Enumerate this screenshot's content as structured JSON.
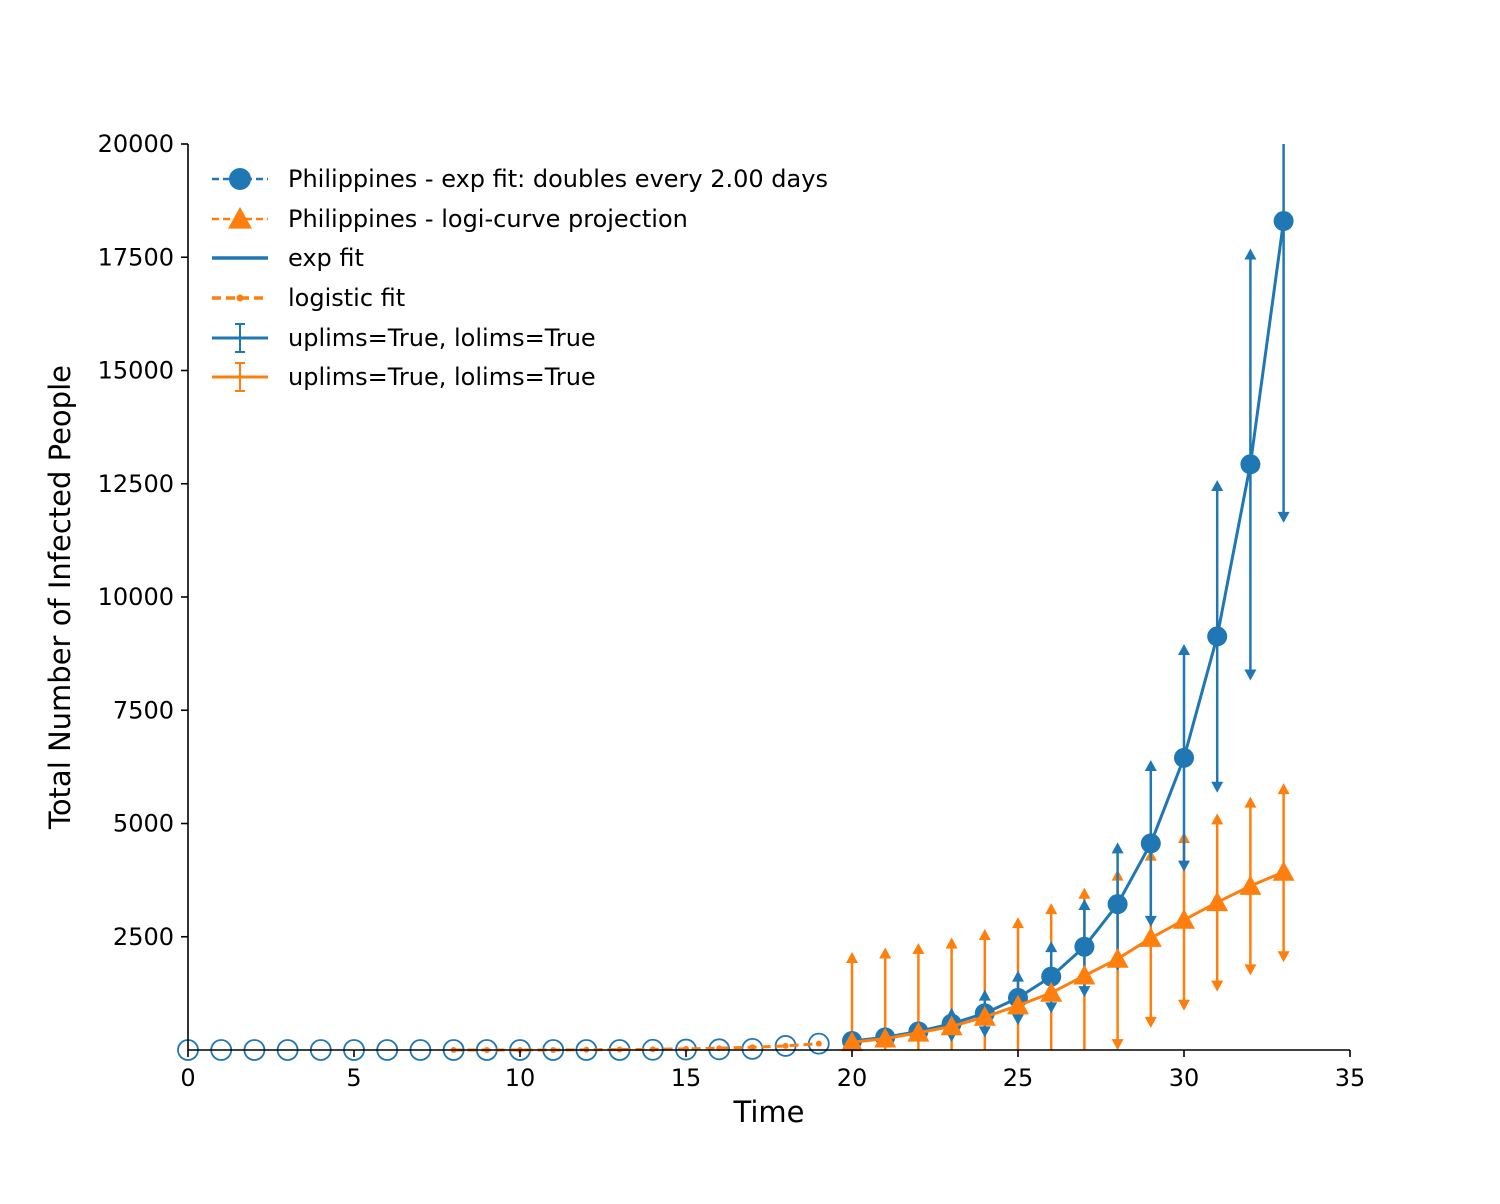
{
  "colors": {
    "blue": "#1f77b4",
    "orange": "#ff7f0e",
    "axis": "#000000"
  },
  "chart_data": {
    "type": "line",
    "title": "",
    "xlabel": "Time",
    "ylabel": "Total Number of Infected People",
    "xlim": [
      0,
      35
    ],
    "ylim": [
      0,
      20000
    ],
    "xticks": [
      "0",
      "5",
      "10",
      "15",
      "20",
      "25",
      "30",
      "35"
    ],
    "yticks": [
      "2500",
      "5000",
      "7500",
      "10000",
      "12500",
      "15000",
      "17500",
      "20000"
    ],
    "xtick_values": [
      0,
      5,
      10,
      15,
      20,
      25,
      30,
      35
    ],
    "ytick_values": [
      2500,
      5000,
      7500,
      10000,
      12500,
      15000,
      17500,
      20000
    ],
    "grid": false,
    "legend_position": "top-left",
    "legend": [
      "Philippines - exp fit: doubles every 2.00 days",
      "Philippines - logi-curve projection",
      "exp fit",
      "logistic fit",
      "uplims=True, lolims=True",
      "uplims=True, lolims=True"
    ],
    "series": [
      {
        "kind": "observed-hollow-circles",
        "x": [
          0,
          1,
          2,
          3,
          4,
          5,
          6,
          7,
          8,
          9,
          10,
          11,
          12,
          13,
          14,
          15,
          16,
          17,
          18,
          19
        ],
        "values": [
          0,
          0,
          0,
          0,
          0,
          0,
          0,
          0,
          0,
          0,
          0,
          0,
          0,
          0,
          5,
          10,
          15,
          25,
          90,
          140
        ]
      },
      {
        "kind": "logistic-fit-dotted",
        "x": [
          8,
          9,
          10,
          11,
          12,
          13,
          14,
          15,
          16,
          17,
          18,
          19
        ],
        "values": [
          0,
          0,
          0,
          0,
          5,
          10,
          15,
          25,
          40,
          60,
          90,
          140
        ]
      },
      {
        "kind": "exp-projection",
        "x": [
          20,
          21,
          22,
          23,
          24,
          25,
          26,
          27,
          28,
          29,
          30,
          31,
          32,
          33
        ],
        "values": [
          200,
          280,
          410,
          580,
          810,
          1150,
          1620,
          2280,
          3220,
          4560,
          6450,
          9130,
          12930,
          18300
        ],
        "err_x": [
          21,
          22,
          23,
          24,
          25,
          26,
          27,
          28,
          29,
          30,
          31,
          32,
          33
        ],
        "err_upper": [
          null,
          null,
          800,
          1200,
          1620,
          2270,
          3200,
          4450,
          6270,
          8830,
          12450,
          17560,
          20000
        ],
        "err_lower": [
          null,
          null,
          310,
          410,
          680,
          940,
          1300,
          1880,
          2850,
          4070,
          5810,
          8290,
          11770
        ]
      },
      {
        "kind": "logistic-projection",
        "x": [
          20,
          21,
          22,
          23,
          24,
          25,
          26,
          27,
          28,
          29,
          30,
          31,
          32,
          33
        ],
        "values": [
          170,
          250,
          380,
          520,
          730,
          980,
          1260,
          1640,
          2010,
          2470,
          2870,
          3260,
          3620,
          3930
        ],
        "err_upper": [
          2030,
          2130,
          2230,
          2350,
          2540,
          2800,
          3110,
          3450,
          3850,
          4290,
          4680,
          5090,
          5460,
          5760
        ],
        "err_lower": [
          0,
          0,
          0,
          0,
          0,
          0,
          0,
          0,
          130,
          620,
          1000,
          1420,
          1780,
          2070
        ]
      }
    ]
  }
}
